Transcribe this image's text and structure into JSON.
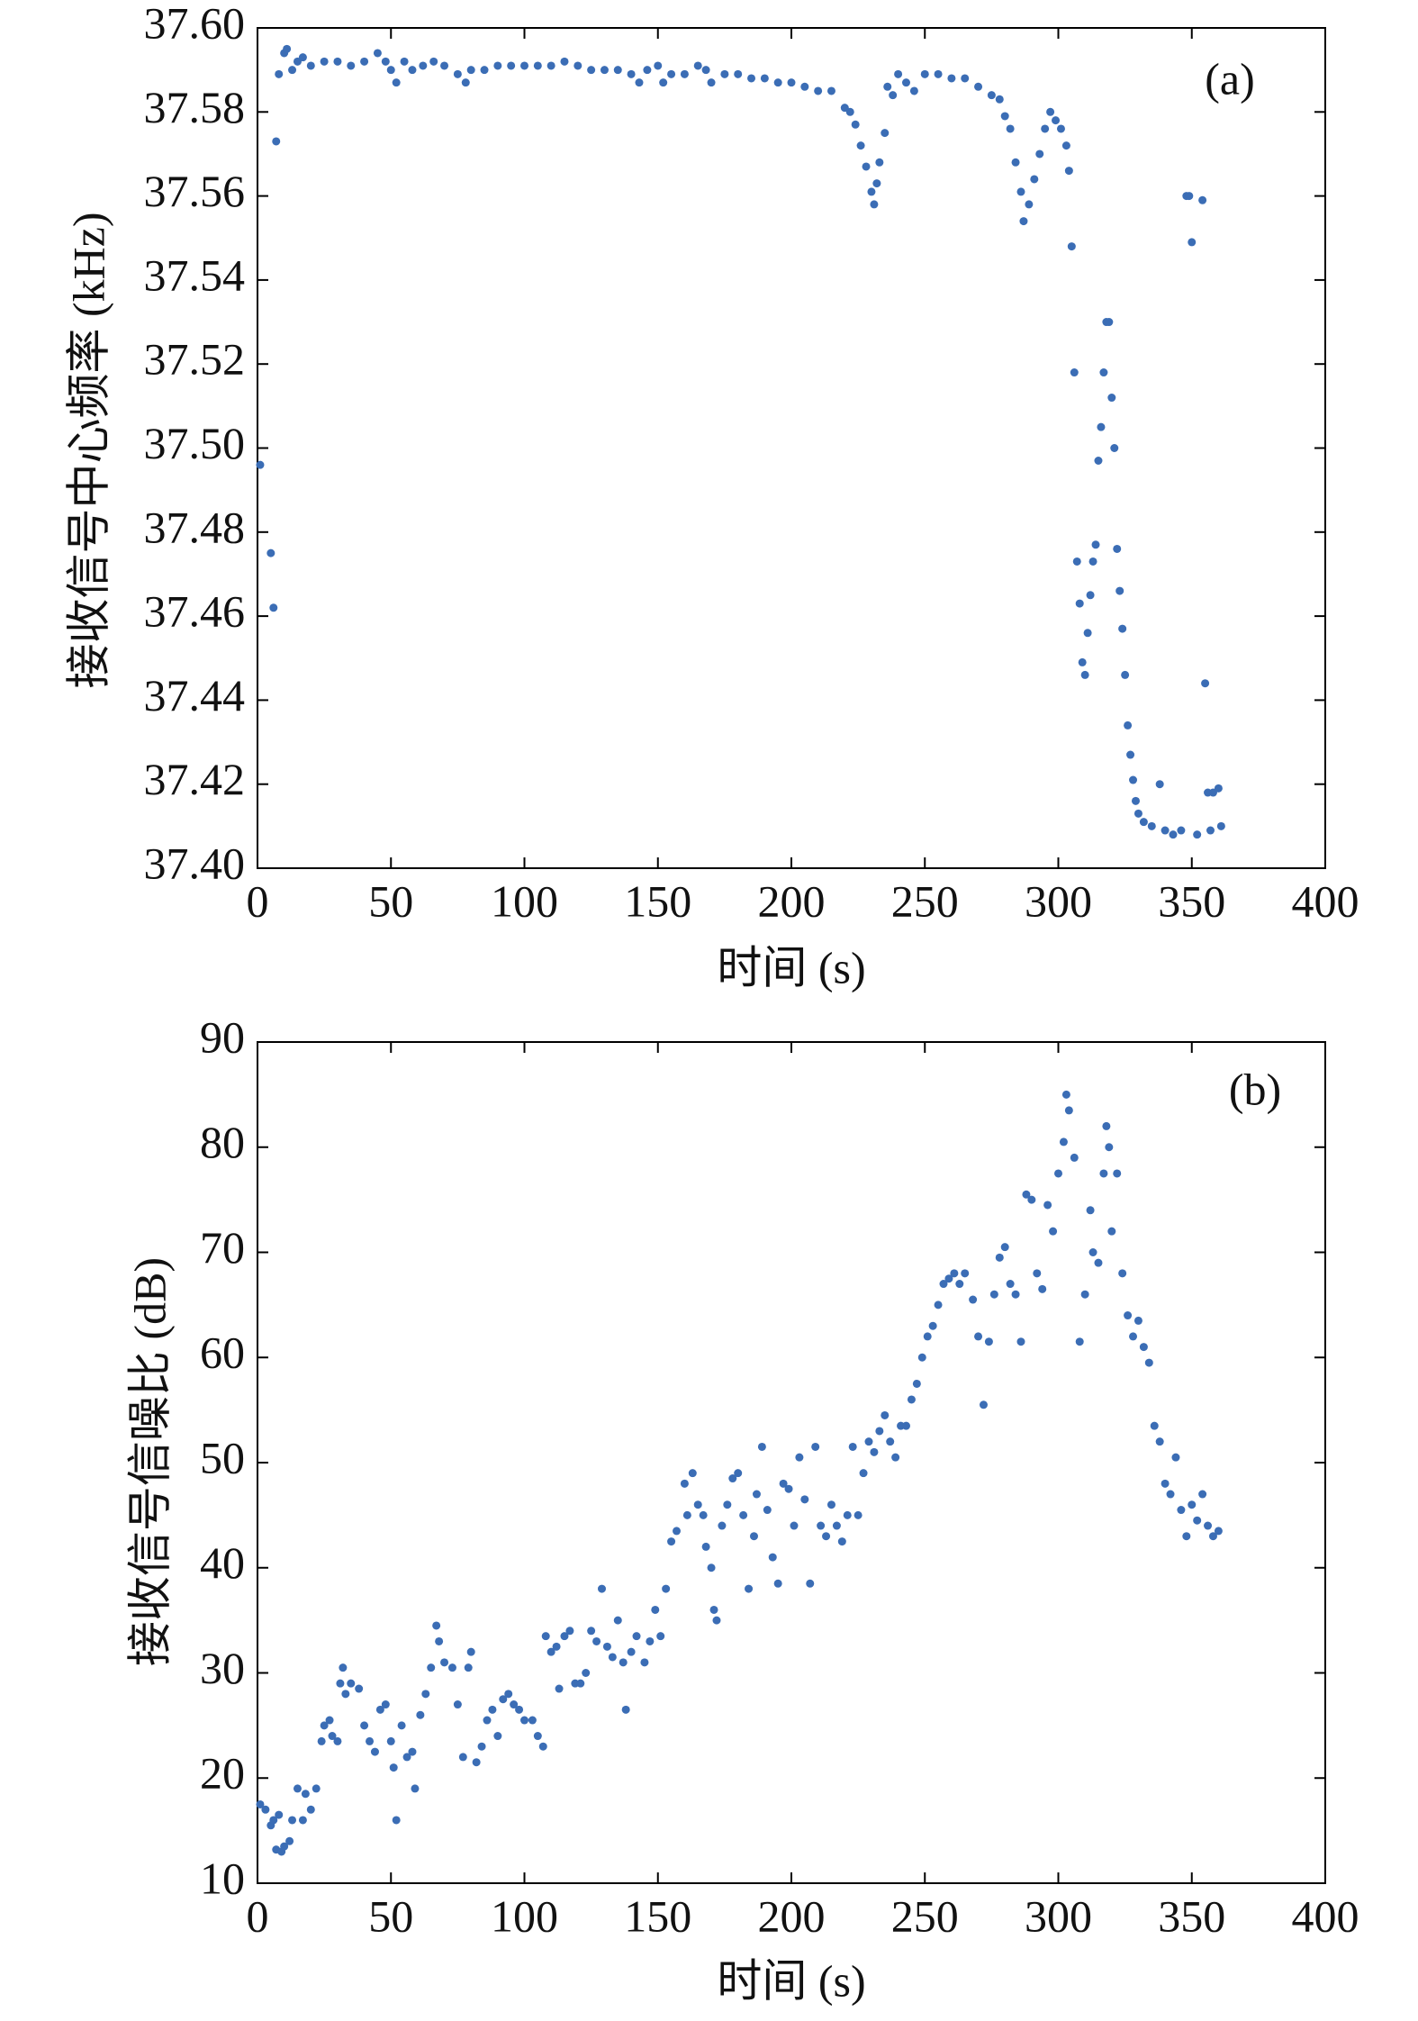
{
  "chart_data": [
    {
      "type": "scatter",
      "annotation": "(a)",
      "y_label": "接收信号中心频率 (kHz)",
      "x_label": "时间 (s)",
      "color": "#3b6db5",
      "x": [
        1,
        5,
        6,
        7,
        8,
        10,
        11,
        13,
        15,
        17,
        20,
        25,
        30,
        35,
        40,
        45,
        48,
        50,
        52,
        55,
        58,
        62,
        66,
        70,
        75,
        78,
        80,
        85,
        90,
        95,
        100,
        105,
        110,
        115,
        120,
        125,
        130,
        135,
        140,
        143,
        146,
        150,
        152,
        155,
        160,
        165,
        168,
        170,
        175,
        180,
        185,
        190,
        195,
        200,
        205,
        210,
        215,
        220,
        222,
        224,
        226,
        228,
        230,
        231,
        232,
        233,
        235,
        236,
        238,
        240,
        243,
        246,
        250,
        255,
        260,
        265,
        270,
        275,
        278,
        280,
        282,
        284,
        286,
        287,
        289,
        291,
        293,
        295,
        297,
        299,
        301,
        303,
        304,
        305,
        306,
        307,
        308,
        309,
        310,
        311,
        312,
        313,
        314,
        315,
        316,
        317,
        318,
        319,
        320,
        321,
        322,
        323,
        324,
        325,
        326,
        327,
        328,
        329,
        330,
        332,
        335,
        338,
        340,
        343,
        346,
        348,
        349,
        350,
        352,
        354,
        355,
        356,
        357,
        358,
        360,
        361
      ],
      "values": [
        37.496,
        37.475,
        37.462,
        37.573,
        37.589,
        37.594,
        37.595,
        37.59,
        37.592,
        37.593,
        37.591,
        37.592,
        37.592,
        37.591,
        37.592,
        37.594,
        37.592,
        37.59,
        37.587,
        37.592,
        37.59,
        37.591,
        37.592,
        37.591,
        37.589,
        37.587,
        37.59,
        37.59,
        37.591,
        37.591,
        37.591,
        37.591,
        37.591,
        37.592,
        37.591,
        37.59,
        37.59,
        37.59,
        37.589,
        37.587,
        37.59,
        37.591,
        37.587,
        37.589,
        37.589,
        37.591,
        37.59,
        37.587,
        37.589,
        37.589,
        37.588,
        37.588,
        37.587,
        37.587,
        37.586,
        37.585,
        37.585,
        37.581,
        37.58,
        37.577,
        37.572,
        37.567,
        37.561,
        37.558,
        37.563,
        37.568,
        37.575,
        37.586,
        37.584,
        37.589,
        37.587,
        37.585,
        37.589,
        37.589,
        37.588,
        37.588,
        37.586,
        37.584,
        37.583,
        37.579,
        37.576,
        37.568,
        37.561,
        37.554,
        37.558,
        37.564,
        37.57,
        37.576,
        37.58,
        37.578,
        37.576,
        37.572,
        37.566,
        37.548,
        37.518,
        37.473,
        37.463,
        37.449,
        37.446,
        37.456,
        37.465,
        37.473,
        37.477,
        37.497,
        37.505,
        37.518,
        37.53,
        37.53,
        37.512,
        37.5,
        37.476,
        37.466,
        37.457,
        37.446,
        37.434,
        37.427,
        37.421,
        37.416,
        37.413,
        37.411,
        37.41,
        37.42,
        37.409,
        37.408,
        37.409,
        37.56,
        37.56,
        37.549,
        37.408,
        37.559,
        37.444,
        37.418,
        37.409,
        37.418,
        37.419,
        37.41
      ],
      "xlim": [
        0,
        400
      ],
      "xticks": [
        0,
        50,
        100,
        150,
        200,
        250,
        300,
        350,
        400
      ],
      "ylim": [
        37.4,
        37.6
      ],
      "yticks": [
        {
          "value": 37.4,
          "label": "37.40"
        },
        {
          "value": 37.42,
          "label": "37.42"
        },
        {
          "value": 37.44,
          "label": "37.44"
        },
        {
          "value": 37.46,
          "label": "37.46"
        },
        {
          "value": 37.48,
          "label": "37.48"
        },
        {
          "value": 37.5,
          "label": "37.50"
        },
        {
          "value": 37.52,
          "label": "37.52"
        },
        {
          "value": 37.54,
          "label": "37.54"
        },
        {
          "value": 37.56,
          "label": "37.56"
        },
        {
          "value": 37.58,
          "label": "37.58"
        },
        {
          "value": 37.6,
          "label": "37.60"
        }
      ]
    },
    {
      "type": "scatter",
      "annotation": "(b)",
      "y_label": "接收信号信噪比 (dB)",
      "x_label": "时间 (s)",
      "color": "#3b6db5",
      "x": [
        1,
        3,
        5,
        6,
        7,
        8,
        9,
        10,
        12,
        13,
        15,
        17,
        18,
        20,
        22,
        24,
        25,
        27,
        28,
        30,
        31,
        32,
        33,
        35,
        38,
        40,
        42,
        44,
        46,
        48,
        50,
        51,
        52,
        54,
        56,
        58,
        59,
        61,
        63,
        65,
        67,
        68,
        70,
        73,
        75,
        77,
        79,
        80,
        82,
        84,
        86,
        88,
        90,
        92,
        94,
        96,
        98,
        100,
        103,
        105,
        107,
        108,
        110,
        112,
        113,
        115,
        117,
        119,
        121,
        123,
        125,
        127,
        129,
        131,
        133,
        135,
        137,
        138,
        140,
        142,
        145,
        147,
        149,
        151,
        153,
        155,
        157,
        160,
        161,
        163,
        165,
        167,
        168,
        170,
        171,
        172,
        174,
        176,
        178,
        180,
        182,
        184,
        186,
        187,
        189,
        191,
        193,
        195,
        197,
        199,
        201,
        203,
        205,
        207,
        209,
        211,
        213,
        215,
        217,
        219,
        221,
        223,
        225,
        227,
        229,
        231,
        233,
        235,
        237,
        239,
        241,
        243,
        245,
        247,
        249,
        251,
        253,
        255,
        257,
        259,
        261,
        263,
        265,
        268,
        270,
        272,
        274,
        276,
        278,
        280,
        282,
        284,
        286,
        288,
        290,
        292,
        294,
        296,
        298,
        300,
        302,
        303,
        304,
        306,
        308,
        310,
        312,
        313,
        315,
        317,
        318,
        319,
        320,
        322,
        324,
        326,
        328,
        330,
        332,
        334,
        336,
        338,
        340,
        342,
        344,
        346,
        348,
        350,
        352,
        354,
        356,
        358,
        360
      ],
      "values": [
        17.5,
        17,
        15.5,
        16,
        13.2,
        16.5,
        13,
        13.5,
        14,
        16,
        19,
        16,
        18.5,
        17,
        19,
        23.5,
        25,
        25.5,
        24,
        23.5,
        29,
        30.5,
        28,
        29,
        28.5,
        25,
        23.5,
        22.5,
        26.5,
        27,
        23.5,
        21,
        16,
        25,
        22,
        22.5,
        19,
        26,
        28,
        30.5,
        34.5,
        33,
        31,
        30.5,
        27,
        22,
        30.5,
        32,
        21.5,
        23,
        25.5,
        26.5,
        24,
        27.5,
        28,
        27,
        26.5,
        25.5,
        25.5,
        24,
        23,
        33.5,
        32,
        32.5,
        28.5,
        33.5,
        34,
        29,
        29,
        30,
        34,
        33,
        38,
        32.5,
        31.5,
        35,
        31,
        26.5,
        32,
        33.5,
        31,
        33,
        36,
        33.5,
        38,
        42.5,
        43.5,
        48,
        45,
        49,
        46,
        45,
        42,
        40,
        36,
        35,
        44,
        46,
        48.5,
        49,
        45,
        38,
        43,
        47,
        51.5,
        45.5,
        41,
        38.5,
        48,
        47.5,
        44,
        50.5,
        46.5,
        38.5,
        51.5,
        44,
        43,
        46,
        44,
        42.5,
        45,
        51.5,
        45,
        49,
        52,
        51,
        53,
        54.5,
        52,
        50.5,
        53.5,
        53.5,
        56,
        57.5,
        60,
        62,
        63,
        65,
        67,
        67.5,
        68,
        67,
        68,
        65.5,
        62,
        55.5,
        61.5,
        66,
        69.5,
        70.5,
        67,
        66,
        61.5,
        75.5,
        75,
        68,
        66.5,
        74.5,
        72,
        77.5,
        80.5,
        85,
        83.5,
        79,
        61.5,
        66,
        74,
        70,
        69,
        77.5,
        82,
        80,
        72,
        77.5,
        68,
        64,
        62,
        63.5,
        61,
        59.5,
        53.5,
        52,
        48,
        47,
        50.5,
        45.5,
        43,
        46,
        44.5,
        47,
        44,
        43,
        43.5
      ],
      "xlim": [
        0,
        400
      ],
      "xticks": [
        0,
        50,
        100,
        150,
        200,
        250,
        300,
        350,
        400
      ],
      "ylim": [
        10,
        90
      ],
      "yticks": [
        10,
        20,
        30,
        40,
        50,
        60,
        70,
        80,
        90
      ]
    }
  ]
}
